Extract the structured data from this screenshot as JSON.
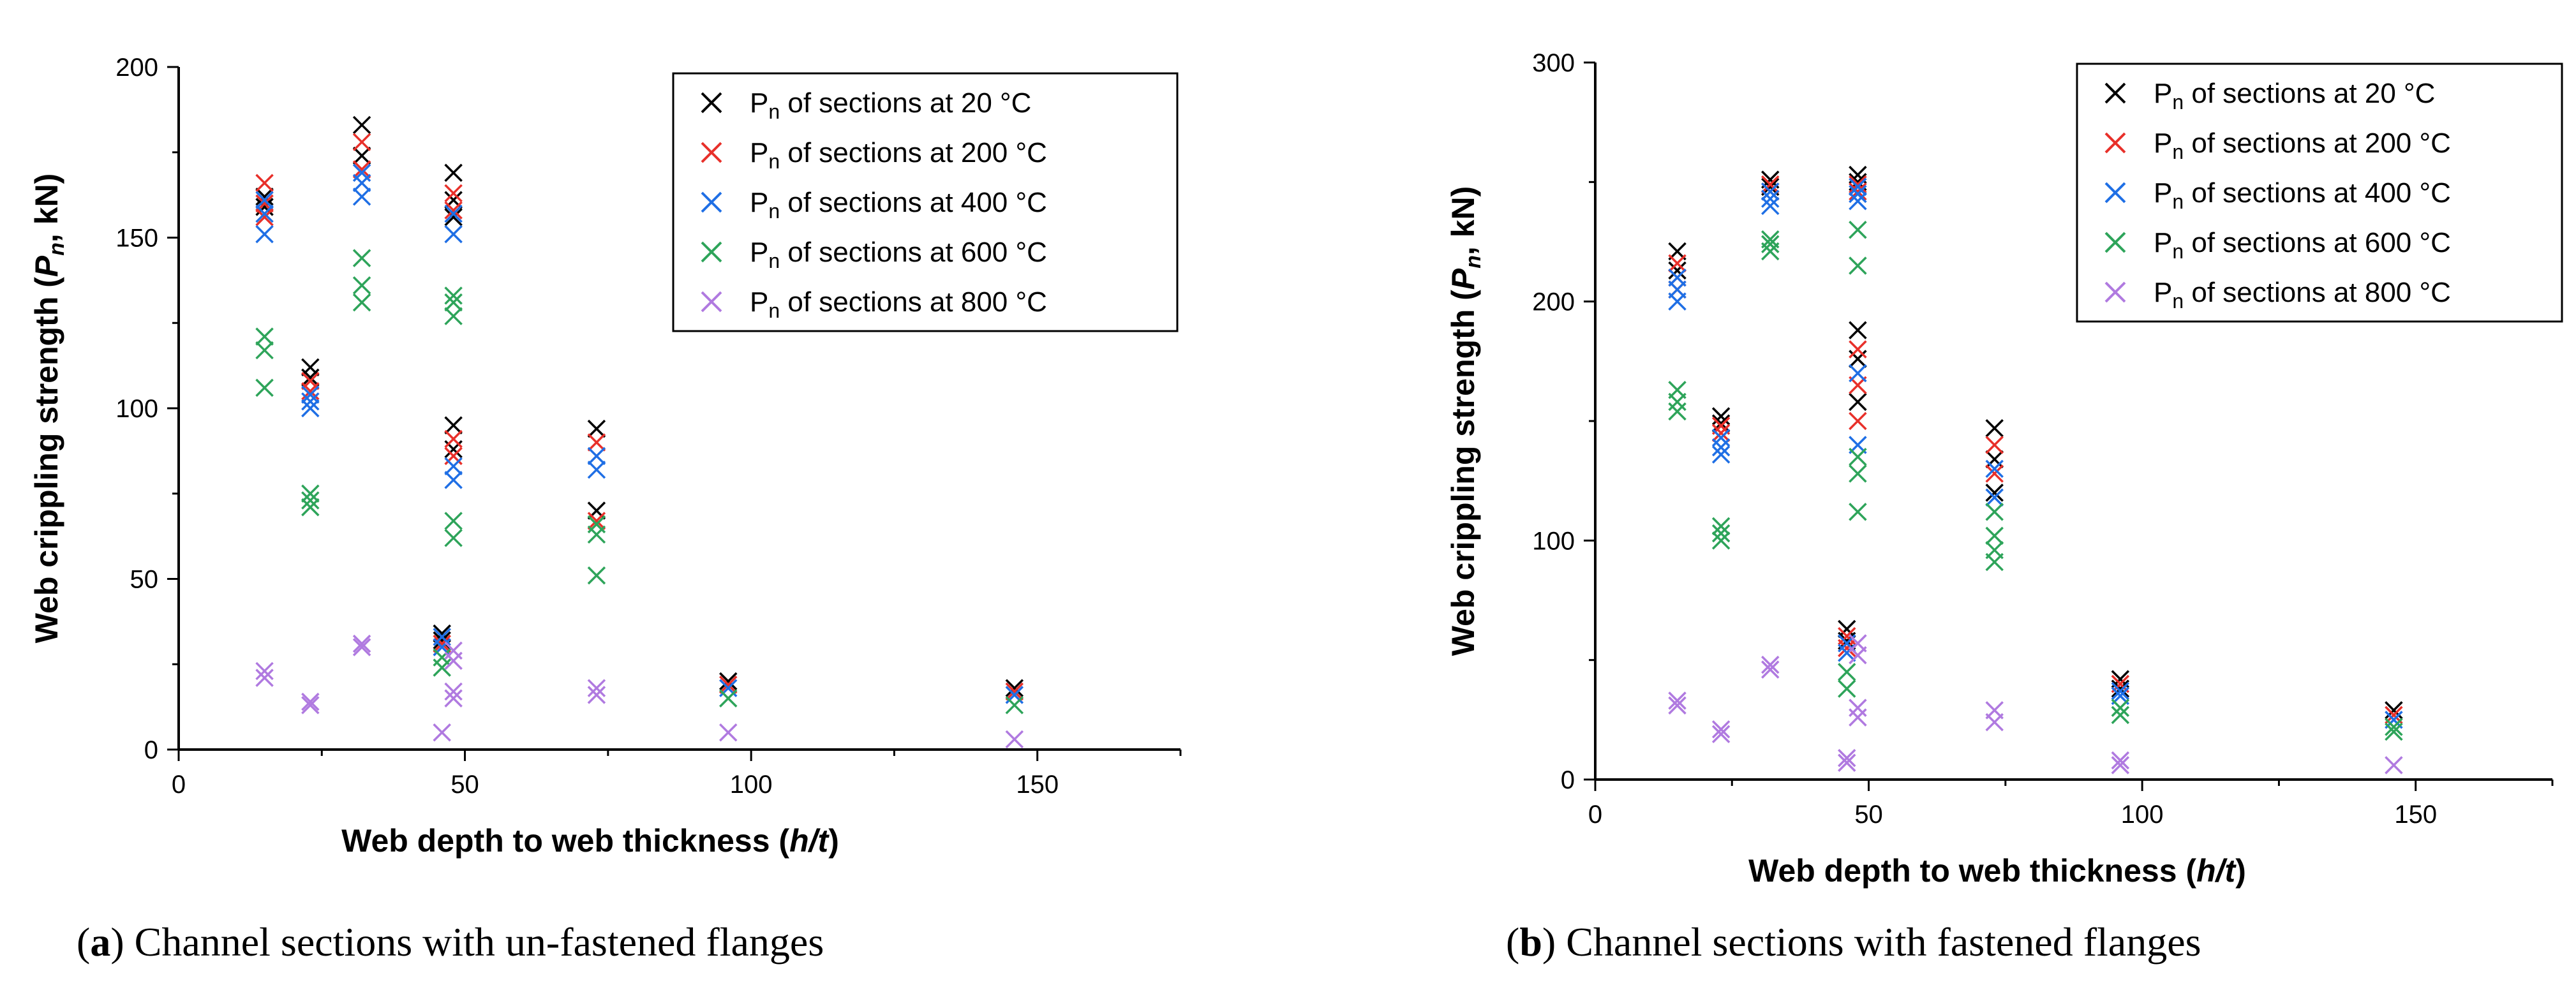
{
  "captions": {
    "a": {
      "paren_open": "(",
      "letter": "a",
      "rest": ") Channel sections with un-fastened flanges"
    },
    "b": {
      "paren_open": "(",
      "letter": "b",
      "rest": ") Channel sections with fastened flanges"
    }
  },
  "chart_data": [
    {
      "id": "a",
      "type": "scatter",
      "marker": "x",
      "xlabel": "Web depth to web thickness (h/t)",
      "xlabel_parts": {
        "prefix": "Web depth to web thickness (",
        "var": "h/t",
        "suffix": ")"
      },
      "ylabel": "Web crippling strength (Pn, kN)",
      "ylabel_parts": {
        "prefix": "Web crippling strength (",
        "var": "P",
        "sub": "n",
        "suffix": ", kN)"
      },
      "xlim": [
        0,
        175
      ],
      "ylim": [
        0,
        200
      ],
      "xticks": [
        0,
        50,
        100,
        150
      ],
      "yticks": [
        0,
        50,
        100,
        150,
        200
      ],
      "legend_position": "top-right",
      "series": [
        {
          "name": "Pn of sections at 20 °C",
          "label_main": "P",
          "label_sub": "n",
          "label_rest": " of sections at 20 °C",
          "color": "#000000",
          "points": [
            [
              15,
              162
            ],
            [
              15,
              159
            ],
            [
              23,
              112
            ],
            [
              23,
              109
            ],
            [
              32,
              183
            ],
            [
              32,
              174
            ],
            [
              48,
              169
            ],
            [
              48,
              161
            ],
            [
              48,
              156
            ],
            [
              48,
              95
            ],
            [
              48,
              88
            ],
            [
              46,
              34
            ],
            [
              46,
              32
            ],
            [
              73,
              94
            ],
            [
              73,
              70
            ],
            [
              96,
              20
            ],
            [
              146,
              18
            ]
          ]
        },
        {
          "name": "Pn of sections at 200 °C",
          "label_main": "P",
          "label_sub": "n",
          "label_rest": " of sections at 200 °C",
          "color": "#e8302a",
          "points": [
            [
              15,
              166
            ],
            [
              15,
              160
            ],
            [
              15,
              156
            ],
            [
              23,
              108
            ],
            [
              23,
              105
            ],
            [
              32,
              178
            ],
            [
              32,
              170
            ],
            [
              48,
              163
            ],
            [
              48,
              158
            ],
            [
              48,
              91
            ],
            [
              48,
              86
            ],
            [
              46,
              31
            ],
            [
              73,
              90
            ],
            [
              73,
              67
            ],
            [
              96,
              19
            ],
            [
              146,
              17
            ]
          ]
        },
        {
          "name": "Pn of sections at 400 °C",
          "label_main": "P",
          "label_sub": "n",
          "label_rest": " of sections at 400 °C",
          "color": "#1f6fe5",
          "points": [
            [
              15,
              161
            ],
            [
              15,
              157
            ],
            [
              15,
              151
            ],
            [
              23,
              104
            ],
            [
              23,
              102
            ],
            [
              23,
              100
            ],
            [
              32,
              169
            ],
            [
              32,
              166
            ],
            [
              32,
              162
            ],
            [
              48,
              157
            ],
            [
              48,
              151
            ],
            [
              48,
              83
            ],
            [
              48,
              79
            ],
            [
              46,
              33
            ],
            [
              46,
              30
            ],
            [
              73,
              86
            ],
            [
              73,
              82
            ],
            [
              96,
              18
            ],
            [
              146,
              16
            ]
          ]
        },
        {
          "name": "Pn of sections at 600 °C",
          "label_main": "P",
          "label_sub": "n",
          "label_rest": " of sections at 600 °C",
          "color": "#2ea45a",
          "points": [
            [
              15,
              121
            ],
            [
              15,
              117
            ],
            [
              15,
              106
            ],
            [
              23,
              75
            ],
            [
              23,
              73
            ],
            [
              23,
              71
            ],
            [
              32,
              144
            ],
            [
              32,
              136
            ],
            [
              32,
              131
            ],
            [
              48,
              133
            ],
            [
              48,
              131
            ],
            [
              48,
              127
            ],
            [
              48,
              67
            ],
            [
              48,
              62
            ],
            [
              46,
              27
            ],
            [
              46,
              24
            ],
            [
              73,
              66
            ],
            [
              73,
              63
            ],
            [
              73,
              51
            ],
            [
              96,
              15
            ],
            [
              146,
              13
            ]
          ]
        },
        {
          "name": "Pn of sections at 800 °C",
          "label_main": "P",
          "label_sub": "n",
          "label_rest": " of sections at 800 °C",
          "color": "#b07ae0",
          "points": [
            [
              15,
              23
            ],
            [
              15,
              21
            ],
            [
              23,
              14
            ],
            [
              23,
              13
            ],
            [
              32,
              31
            ],
            [
              32,
              30
            ],
            [
              48,
              29
            ],
            [
              48,
              26
            ],
            [
              48,
              17
            ],
            [
              48,
              15
            ],
            [
              46,
              5
            ],
            [
              73,
              18
            ],
            [
              73,
              16
            ],
            [
              96,
              5
            ],
            [
              146,
              3
            ]
          ]
        }
      ]
    },
    {
      "id": "b",
      "type": "scatter",
      "marker": "x",
      "xlabel": "Web depth to web thickness (h/t)",
      "xlabel_parts": {
        "prefix": "Web depth to web thickness (",
        "var": "h/t",
        "suffix": ")"
      },
      "ylabel": "Web crippling strength (Pn, kN)",
      "ylabel_parts": {
        "prefix": "Web crippling strength (",
        "var": "P",
        "sub": "n",
        "suffix": ", kN)"
      },
      "xlim": [
        0,
        175
      ],
      "ylim": [
        0,
        300
      ],
      "xticks": [
        0,
        50,
        100,
        150
      ],
      "yticks": [
        0,
        100,
        200,
        300
      ],
      "legend_position": "top-right",
      "series": [
        {
          "name": "Pn of sections at 20 °C",
          "label_main": "P",
          "label_sub": "n",
          "label_rest": " of sections at 20 °C",
          "color": "#000000",
          "points": [
            [
              15,
              221
            ],
            [
              15,
              213
            ],
            [
              23,
              152
            ],
            [
              23,
              149
            ],
            [
              32,
              251
            ],
            [
              32,
              248
            ],
            [
              48,
              253
            ],
            [
              48,
              250
            ],
            [
              48,
              188
            ],
            [
              48,
              176
            ],
            [
              48,
              158
            ],
            [
              46,
              63
            ],
            [
              46,
              58
            ],
            [
              73,
              147
            ],
            [
              73,
              134
            ],
            [
              73,
              120
            ],
            [
              96,
              42
            ],
            [
              96,
              38
            ],
            [
              146,
              29
            ]
          ]
        },
        {
          "name": "Pn of sections at 200 °C",
          "label_main": "P",
          "label_sub": "n",
          "label_rest": " of sections at 200 °C",
          "color": "#e8302a",
          "points": [
            [
              15,
              216
            ],
            [
              15,
              210
            ],
            [
              15,
              205
            ],
            [
              23,
              148
            ],
            [
              23,
              145
            ],
            [
              32,
              249
            ],
            [
              32,
              246
            ],
            [
              48,
              249
            ],
            [
              48,
              246
            ],
            [
              48,
              180
            ],
            [
              48,
              165
            ],
            [
              48,
              150
            ],
            [
              46,
              60
            ],
            [
              46,
              55
            ],
            [
              73,
              140
            ],
            [
              73,
              128
            ],
            [
              96,
              40
            ],
            [
              146,
              27
            ]
          ]
        },
        {
          "name": "Pn of sections at 400 °C",
          "label_main": "P",
          "label_sub": "n",
          "label_rest": " of sections at 400 °C",
          "color": "#1f6fe5",
          "points": [
            [
              15,
              210
            ],
            [
              15,
              205
            ],
            [
              15,
              200
            ],
            [
              23,
              143
            ],
            [
              23,
              139
            ],
            [
              23,
              136
            ],
            [
              32,
              246
            ],
            [
              32,
              243
            ],
            [
              32,
              240
            ],
            [
              48,
              248
            ],
            [
              48,
              245
            ],
            [
              48,
              242
            ],
            [
              48,
              170
            ],
            [
              48,
              140
            ],
            [
              46,
              57
            ],
            [
              46,
              53
            ],
            [
              73,
              130
            ],
            [
              73,
              118
            ],
            [
              96,
              37
            ],
            [
              96,
              35
            ],
            [
              146,
              25
            ]
          ]
        },
        {
          "name": "Pn of sections at 600 °C",
          "label_main": "P",
          "label_sub": "n",
          "label_rest": " of sections at 600 °C",
          "color": "#2ea45a",
          "points": [
            [
              15,
              163
            ],
            [
              15,
              158
            ],
            [
              15,
              154
            ],
            [
              23,
              106
            ],
            [
              23,
              103
            ],
            [
              23,
              100
            ],
            [
              32,
              226
            ],
            [
              32,
              224
            ],
            [
              32,
              221
            ],
            [
              48,
              230
            ],
            [
              48,
              215
            ],
            [
              48,
              135
            ],
            [
              48,
              128
            ],
            [
              48,
              112
            ],
            [
              46,
              45
            ],
            [
              46,
              38
            ],
            [
              73,
              112
            ],
            [
              73,
              102
            ],
            [
              73,
              96
            ],
            [
              73,
              91
            ],
            [
              96,
              30
            ],
            [
              96,
              27
            ],
            [
              146,
              22
            ],
            [
              146,
              20
            ]
          ]
        },
        {
          "name": "Pn of sections at 800 °C",
          "label_main": "P",
          "label_sub": "n",
          "label_rest": " of sections at 800 °C",
          "color": "#b07ae0",
          "points": [
            [
              15,
              33
            ],
            [
              15,
              31
            ],
            [
              23,
              21
            ],
            [
              23,
              19
            ],
            [
              32,
              48
            ],
            [
              32,
              46
            ],
            [
              48,
              57
            ],
            [
              48,
              52
            ],
            [
              48,
              30
            ],
            [
              48,
              26
            ],
            [
              46,
              9
            ],
            [
              46,
              7
            ],
            [
              73,
              29
            ],
            [
              73,
              24
            ],
            [
              96,
              8
            ],
            [
              96,
              6
            ],
            [
              146,
              6
            ]
          ]
        }
      ]
    }
  ]
}
